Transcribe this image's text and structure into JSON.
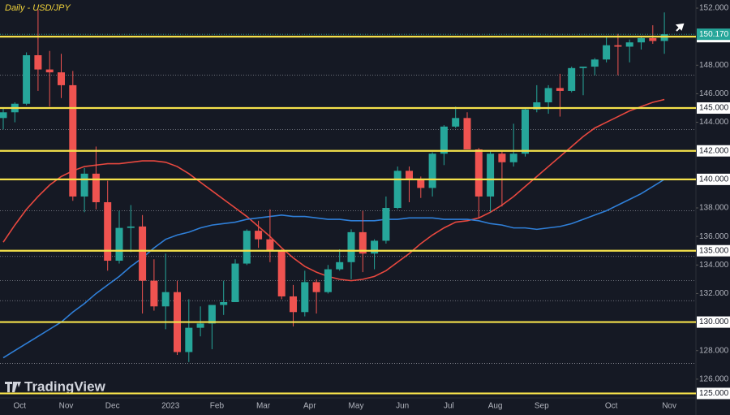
{
  "chart_data": {
    "type": "candlestick",
    "title": "Daily - USD/JPY",
    "watermark": "TradingView",
    "categories": [
      null,
      "Oct",
      null,
      null,
      null,
      "Nov",
      null,
      null,
      null,
      "Dec",
      null,
      null,
      null,
      null,
      "2023",
      null,
      null,
      null,
      "Feb",
      null,
      null,
      null,
      "Mar",
      null,
      null,
      null,
      "Apr",
      null,
      null,
      null,
      "May",
      null,
      null,
      null,
      "Jun",
      null,
      null,
      null,
      "Jul",
      null,
      null,
      null,
      "Aug",
      null,
      null,
      null,
      "Sep",
      null,
      null,
      null,
      null,
      null,
      "Oct",
      null,
      null,
      null,
      null,
      "Nov"
    ],
    "open": [
      144.3,
      144.7,
      145.3,
      148.7,
      147.7,
      147.5,
      146.6,
      138.8,
      140.4,
      138.4,
      134.3,
      136.6,
      136.7,
      132.9,
      131.1,
      132.1,
      127.9,
      129.6,
      129.9,
      131.2,
      131.4,
      134.1,
      136.4,
      135.8,
      135.0,
      131.8,
      130.7,
      132.8,
      132.1,
      133.7,
      134.2,
      136.3,
      134.8,
      135.7,
      138.0,
      140.6,
      140.0,
      139.4,
      141.8,
      143.7,
      144.3,
      142.1,
      138.8,
      141.8,
      141.2,
      141.8,
      144.9,
      145.4,
      146.4,
      146.2,
      147.8,
      147.9,
      148.4,
      149.4,
      149.3,
      149.6,
      149.9,
      149.7
    ],
    "high": [
      145.0,
      145.4,
      148.9,
      151.9,
      149.0,
      148.8,
      147.6,
      140.8,
      142.3,
      139.9,
      137.8,
      138.2,
      137.5,
      134.4,
      134.8,
      132.9,
      131.6,
      131.1,
      131.2,
      132.9,
      134.4,
      136.5,
      137.1,
      137.9,
      135.1,
      132.6,
      133.6,
      133.0,
      134.0,
      135.1,
      136.5,
      137.8,
      135.8,
      138.8,
      140.9,
      140.9,
      140.2,
      141.9,
      143.8,
      145.1,
      144.7,
      142.2,
      142.0,
      142.0,
      143.9,
      145.0,
      146.6,
      146.6,
      147.4,
      147.9,
      147.9,
      148.5,
      150.0,
      150.2,
      149.8,
      150.0,
      150.8,
      151.7
    ],
    "low": [
      143.5,
      144.0,
      145.2,
      146.2,
      145.1,
      145.7,
      138.5,
      137.7,
      137.9,
      133.6,
      134.1,
      134.9,
      130.6,
      130.8,
      129.5,
      127.7,
      127.2,
      129.0,
      128.1,
      130.5,
      131.4,
      134.0,
      135.2,
      134.2,
      131.6,
      129.7,
      130.4,
      130.6,
      132.0,
      133.6,
      133.0,
      133.5,
      133.7,
      135.5,
      137.9,
      138.4,
      138.7,
      138.8,
      141.0,
      143.6,
      142.1,
      137.3,
      137.7,
      138.1,
      140.9,
      141.6,
      144.7,
      144.6,
      144.4,
      146.1,
      145.9,
      147.3,
      148.2,
      147.3,
      148.2,
      149.1,
      149.5,
      148.8
    ],
    "close": [
      144.7,
      145.3,
      148.7,
      147.7,
      147.5,
      146.6,
      138.8,
      140.4,
      138.4,
      134.3,
      136.6,
      136.7,
      132.9,
      131.1,
      132.1,
      127.9,
      129.6,
      129.9,
      131.2,
      131.4,
      134.1,
      136.4,
      135.8,
      135.0,
      131.8,
      130.7,
      132.8,
      132.1,
      133.7,
      134.2,
      136.3,
      134.8,
      135.7,
      138.0,
      140.6,
      140.0,
      139.4,
      141.8,
      143.7,
      144.3,
      142.1,
      138.8,
      141.8,
      141.2,
      141.8,
      144.9,
      145.4,
      146.4,
      146.2,
      147.8,
      147.9,
      148.4,
      149.4,
      149.3,
      149.6,
      149.9,
      149.7,
      150.17
    ],
    "up_color": "#26a69a",
    "down_color": "#ef5350",
    "series": [
      {
        "color": "#e8483f",
        "values": [
          135.6,
          136.8,
          137.9,
          138.8,
          139.6,
          140.2,
          140.6,
          140.9,
          141.0,
          141.1,
          141.1,
          141.2,
          141.3,
          141.3,
          141.2,
          140.9,
          140.4,
          139.8,
          139.2,
          138.6,
          138.0,
          137.4,
          136.7,
          136.0,
          135.2,
          134.5,
          133.9,
          133.5,
          133.2,
          133.0,
          132.9,
          133.0,
          133.2,
          133.6,
          134.2,
          134.8,
          135.5,
          136.1,
          136.6,
          137.0,
          137.1,
          137.3,
          137.7,
          138.2,
          138.8,
          139.5,
          140.2,
          140.9,
          141.6,
          142.3,
          143.0,
          143.6,
          144.0,
          144.4,
          144.8,
          145.1,
          145.4,
          145.6
        ]
      },
      {
        "color": "#2f7fd8",
        "values": [
          127.5,
          128.0,
          128.5,
          129.0,
          129.5,
          130.0,
          130.7,
          131.3,
          132.0,
          132.6,
          133.2,
          133.9,
          134.5,
          135.2,
          135.8,
          136.1,
          136.3,
          136.6,
          136.8,
          136.9,
          137.0,
          137.2,
          137.3,
          137.4,
          137.5,
          137.4,
          137.4,
          137.3,
          137.2,
          137.2,
          137.1,
          137.1,
          137.1,
          137.2,
          137.2,
          137.3,
          137.3,
          137.3,
          137.2,
          137.2,
          137.2,
          137.1,
          136.9,
          136.8,
          136.6,
          136.6,
          136.5,
          136.6,
          136.7,
          136.9,
          137.2,
          137.5,
          137.8,
          138.2,
          138.6,
          139.0,
          139.5,
          140.0
        ]
      }
    ],
    "levels": [
      {
        "value": 150,
        "label": "150.000"
      },
      {
        "value": 145,
        "label": "145.000"
      },
      {
        "value": 142,
        "label": "142.000"
      },
      {
        "value": 140,
        "label": "140.000"
      },
      {
        "value": 135,
        "label": "135.000"
      },
      {
        "value": 130,
        "label": "130.000"
      },
      {
        "value": 125,
        "label": "125.000"
      }
    ],
    "dotted_levels": [
      147.3,
      143.5,
      137.8,
      134.6,
      132.9,
      131.5,
      127.1
    ],
    "last": {
      "value": 150.17,
      "label": "150.170"
    },
    "ylim": [
      124.57,
      152.57
    ],
    "yticks": [
      {
        "value": 152,
        "label": "152.000"
      },
      {
        "value": 148,
        "label": "148.000"
      },
      {
        "value": 146,
        "label": "146.000"
      },
      {
        "value": 144,
        "label": "144.000"
      },
      {
        "value": 138,
        "label": "138.000"
      },
      {
        "value": 136,
        "label": "136.000"
      },
      {
        "value": 134,
        "label": "134.000"
      },
      {
        "value": 132,
        "label": "132.000"
      },
      {
        "value": 128,
        "label": "128.000"
      },
      {
        "value": 126,
        "label": "126.000"
      }
    ]
  }
}
